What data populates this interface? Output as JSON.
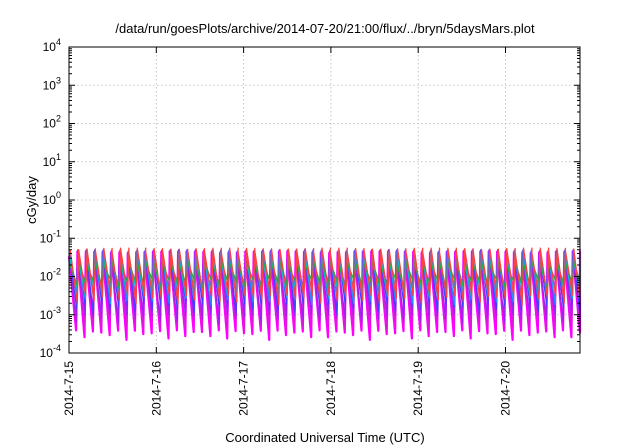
{
  "chart_data": {
    "type": "line",
    "title": "/data/run/goesPlots/archive/2014-07-20/21:00/flux/../bryn/5daysMars.plot",
    "xlabel": "Coordinated Universal Time (UTC)",
    "ylabel": "cGy/day",
    "yscale": "log",
    "ylim": [
      0.0001,
      10000
    ],
    "xlim": [
      "2014-07-15",
      "2014-07-20 21:00"
    ],
    "grid": true,
    "legend": "none",
    "x_ticks": [
      {
        "label": "2014-7-15",
        "day": 0
      },
      {
        "label": "2014-7-16",
        "day": 1
      },
      {
        "label": "2014-7-17",
        "day": 2
      },
      {
        "label": "2014-7-18",
        "day": 3
      },
      {
        "label": "2014-7-19",
        "day": 4
      },
      {
        "label": "2014-7-20",
        "day": 5
      }
    ],
    "y_ticks": [
      {
        "base": "10",
        "exp": "-4",
        "value": 0.0001
      },
      {
        "base": "10",
        "exp": "-3",
        "value": 0.001
      },
      {
        "base": "10",
        "exp": "-2",
        "value": 0.01
      },
      {
        "base": "10",
        "exp": "-1",
        "value": 0.1
      },
      {
        "base": "10",
        "exp": "0",
        "value": 1
      },
      {
        "base": "10",
        "exp": "1",
        "value": 10
      },
      {
        "base": "10",
        "exp": "2",
        "value": 100
      },
      {
        "base": "10",
        "exp": "3",
        "value": 1000
      },
      {
        "base": "10",
        "exp": "4",
        "value": 10000
      }
    ],
    "cycles_per_day": 10.4,
    "series": [
      {
        "color": "#ff00ff",
        "peak": 0.045,
        "trough": 0.0003
      },
      {
        "color": "#d81bd8",
        "peak": 0.04,
        "trough": 0.0005
      },
      {
        "color": "#a020f0",
        "peak": 0.035,
        "trough": 0.0008
      },
      {
        "color": "#4040ff",
        "peak": 0.05,
        "trough": 0.0015
      },
      {
        "color": "#1e90ff",
        "peak": 0.045,
        "trough": 0.0025
      },
      {
        "color": "#00c0c0",
        "peak": 0.03,
        "trough": 0.004
      },
      {
        "color": "#20b040",
        "peak": 0.025,
        "trough": 0.006
      },
      {
        "color": "#ff4040",
        "peak": 0.055,
        "trough": 0.0025
      }
    ]
  }
}
